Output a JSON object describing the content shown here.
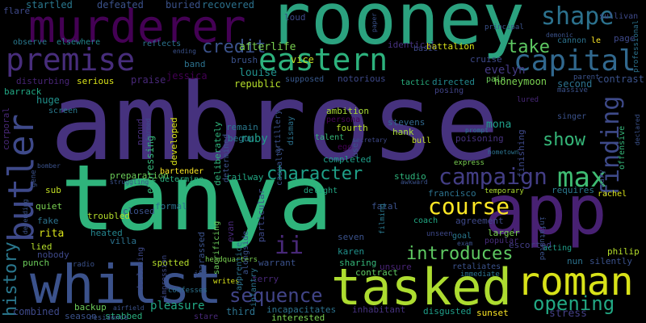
{
  "wordcloud": {
    "words": [
      {
        "text": "ambrose",
        "color": "#46327e"
      },
      {
        "text": "tanya",
        "color": "#2fb47c"
      },
      {
        "text": "rooney",
        "color": "#2ba27f"
      },
      {
        "text": "murderer",
        "color": "#440154"
      },
      {
        "text": "premise",
        "color": "#472d7b"
      },
      {
        "text": "eastern",
        "color": "#2db27d"
      },
      {
        "text": "app",
        "color": "#482173"
      },
      {
        "text": "whilst",
        "color": "#3b528b"
      },
      {
        "text": "tasked",
        "color": "#addc30"
      },
      {
        "text": "roman",
        "color": "#d8e219"
      },
      {
        "text": "butler",
        "color": "#3e4989"
      },
      {
        "text": "capital",
        "color": "#31688e"
      },
      {
        "text": "shape",
        "color": "#2c728e"
      },
      {
        "text": "campaign",
        "color": "#433e85"
      },
      {
        "text": "max",
        "color": "#3fbc73"
      },
      {
        "text": "finding",
        "color": "#3e4a89"
      },
      {
        "text": "character",
        "color": "#1fa088"
      },
      {
        "text": "course",
        "color": "#fde725"
      },
      {
        "text": "introduces",
        "color": "#5ec962"
      },
      {
        "text": "sequence",
        "color": "#414487"
      },
      {
        "text": "opening",
        "color": "#22a884"
      },
      {
        "text": "credit",
        "color": "#3b528b"
      },
      {
        "text": "show",
        "color": "#35b779"
      },
      {
        "text": "take",
        "color": "#5ec962"
      },
      {
        "text": "history",
        "color": "#2a788e"
      },
      {
        "text": "ii",
        "color": "#482878"
      },
      {
        "text": "evelyn",
        "color": "#443a83"
      },
      {
        "text": "ruby",
        "color": "#1f9e89"
      },
      {
        "text": "louise",
        "color": "#21918c"
      },
      {
        "text": "afterlife",
        "color": "#7ad151"
      },
      {
        "text": "vice",
        "color": "#c2df23"
      },
      {
        "text": "jessica",
        "color": "#440154"
      },
      {
        "text": "mona",
        "color": "#1f9e89"
      },
      {
        "text": "honeymoon",
        "color": "#7ad151"
      },
      {
        "text": "second",
        "color": "#2c728e"
      },
      {
        "text": "contrast",
        "color": "#3b528b"
      },
      {
        "text": "republic",
        "color": "#b5de2b"
      },
      {
        "text": "notorious",
        "color": "#3e4989"
      },
      {
        "text": "directed",
        "color": "#23888e"
      },
      {
        "text": "tactic",
        "color": "#2ab07f"
      },
      {
        "text": "posing",
        "color": "#414487"
      },
      {
        "text": "supposed",
        "color": "#38588c"
      },
      {
        "text": "pain",
        "color": "#6ccd5a"
      },
      {
        "text": "serious",
        "color": "#d8e219"
      },
      {
        "text": "disturbing",
        "color": "#482475"
      },
      {
        "text": "praise",
        "color": "#482878"
      },
      {
        "text": "huge",
        "color": "#21918c"
      },
      {
        "text": "barrack",
        "color": "#22a884"
      },
      {
        "text": "corporal",
        "color": "#482878"
      },
      {
        "text": "screen",
        "color": "#2a788e"
      },
      {
        "text": "expressing",
        "color": "#35b779"
      },
      {
        "text": "proud",
        "color": "#472d7b"
      },
      {
        "text": "developed",
        "color": "#d8e219"
      },
      {
        "text": "bartender",
        "color": "#fde725"
      },
      {
        "text": "remain",
        "color": "#2a788e"
      },
      {
        "text": "begun",
        "color": "#2a788e"
      },
      {
        "text": "deliberately",
        "color": "#2fb47c"
      },
      {
        "text": "determined",
        "color": "#3b528b"
      },
      {
        "text": "ambition",
        "color": "#a8db34"
      },
      {
        "text": "persona",
        "color": "#440154"
      },
      {
        "text": "fourth",
        "color": "#b5de2b"
      },
      {
        "text": "talent",
        "color": "#35b779"
      },
      {
        "text": "ego",
        "color": "#440154"
      },
      {
        "text": "stevens",
        "color": "#31688e"
      },
      {
        "text": "hank",
        "color": "#a8db34"
      },
      {
        "text": "bull",
        "color": "#c2df23"
      },
      {
        "text": "poisoning",
        "color": "#46327e"
      },
      {
        "text": "completed",
        "color": "#1f9e89"
      },
      {
        "text": "preparation",
        "color": "#6ccd5a"
      },
      {
        "text": "determine",
        "color": "#2ab07f"
      },
      {
        "text": "railway",
        "color": "#22a884"
      },
      {
        "text": "studio",
        "color": "#2fb47c"
      },
      {
        "text": "express",
        "color": "#7ad151"
      },
      {
        "text": "francisco",
        "color": "#2c728e"
      },
      {
        "text": "temporary",
        "color": "#addc30"
      },
      {
        "text": "agreement",
        "color": "#3e4989"
      },
      {
        "text": "requires",
        "color": "#2a788e"
      },
      {
        "text": "rachel",
        "color": "#d8e219"
      },
      {
        "text": "troubled",
        "color": "#b5de2b"
      },
      {
        "text": "closed",
        "color": "#3b528b"
      },
      {
        "text": "formal",
        "color": "#2c728e"
      },
      {
        "text": "heated",
        "color": "#25858e"
      },
      {
        "text": "villa",
        "color": "#2c728e"
      },
      {
        "text": "fatal",
        "color": "#3b528b"
      },
      {
        "text": "seven",
        "color": "#3b528b"
      },
      {
        "text": "larger",
        "color": "#7ad151"
      },
      {
        "text": "goal",
        "color": "#2a788e"
      },
      {
        "text": "coach",
        "color": "#22a884"
      },
      {
        "text": "popular",
        "color": "#472d7b"
      },
      {
        "text": "escorted",
        "color": "#433e85"
      },
      {
        "text": "acting",
        "color": "#1f9e89"
      },
      {
        "text": "philip",
        "color": "#b5de2b"
      },
      {
        "text": "nun",
        "color": "#2c728e"
      },
      {
        "text": "silently",
        "color": "#3b528b"
      },
      {
        "text": "karen",
        "color": "#21918c"
      },
      {
        "text": "sharing",
        "color": "#35b779"
      },
      {
        "text": "unsure",
        "color": "#482475"
      },
      {
        "text": "contract",
        "color": "#5ec962"
      },
      {
        "text": "retaliates",
        "color": "#3b528b"
      },
      {
        "text": "immediate",
        "color": "#2c728e"
      },
      {
        "text": "evan",
        "color": "#482878"
      },
      {
        "text": "warrant",
        "color": "#3b528b"
      },
      {
        "text": "terry",
        "color": "#482878"
      },
      {
        "text": "pleasure",
        "color": "#22a884"
      },
      {
        "text": "third",
        "color": "#2c728e"
      },
      {
        "text": "incapacitates",
        "color": "#2c728e"
      },
      {
        "text": "inhabitant",
        "color": "#46327e"
      },
      {
        "text": "disgusted",
        "color": "#1f9e89"
      },
      {
        "text": "sunset",
        "color": "#fde725"
      },
      {
        "text": "stress",
        "color": "#433e85"
      },
      {
        "text": "interested",
        "color": "#7ad151"
      },
      {
        "text": "stare",
        "color": "#482878"
      },
      {
        "text": "stabbed",
        "color": "#2ab07f"
      },
      {
        "text": "season",
        "color": "#3b528b"
      },
      {
        "text": "combined",
        "color": "#3e4989"
      },
      {
        "text": "backup",
        "color": "#6ccd5a"
      },
      {
        "text": "punch",
        "color": "#6ccd5a"
      },
      {
        "text": "lied",
        "color": "#b5de2b"
      },
      {
        "text": "nobody",
        "color": "#3e4989"
      },
      {
        "text": "rita",
        "color": "#d8e219"
      },
      {
        "text": "fake",
        "color": "#2c728e"
      },
      {
        "text": "quiet",
        "color": "#7ad151"
      },
      {
        "text": "sub",
        "color": "#c2df23"
      },
      {
        "text": "spotted",
        "color": "#b5de2b"
      },
      {
        "text": "radio",
        "color": "#3b528b"
      },
      {
        "text": "writes",
        "color": "#d8e219"
      },
      {
        "text": "confesses",
        "color": "#2c728e"
      },
      {
        "text": "headquarters",
        "color": "#7ad151"
      },
      {
        "text": "startled",
        "color": "#2a788e"
      },
      {
        "text": "defeated",
        "color": "#3b528b"
      },
      {
        "text": "buried",
        "color": "#3b528b"
      },
      {
        "text": "recovered",
        "color": "#2c728e"
      },
      {
        "text": "flare",
        "color": "#3e4989"
      },
      {
        "text": "observe",
        "color": "#2a788e"
      },
      {
        "text": "elsewhere",
        "color": "#25858e"
      },
      {
        "text": "reflects",
        "color": "#2c728e"
      },
      {
        "text": "band",
        "color": "#2c728e"
      },
      {
        "text": "brush",
        "color": "#3b528b"
      },
      {
        "text": "loud",
        "color": "#3e4989"
      },
      {
        "text": "identical",
        "color": "#46327e"
      },
      {
        "text": "battalion",
        "color": "#d8e219"
      },
      {
        "text": "cruise",
        "color": "#3e4989"
      },
      {
        "text": "basic",
        "color": "#3e4989"
      },
      {
        "text": "principal",
        "color": "#3b528b"
      },
      {
        "text": "sullivan",
        "color": "#3e4989"
      },
      {
        "text": "cannon",
        "color": "#2c728e"
      },
      {
        "text": "le",
        "color": "#fde725"
      },
      {
        "text": "page",
        "color": "#3e4989"
      },
      {
        "text": "professional",
        "color": "#2c728e"
      },
      {
        "text": "singer",
        "color": "#3b528b"
      },
      {
        "text": "lured",
        "color": "#482878"
      },
      {
        "text": "hometown",
        "color": "#2c728e"
      },
      {
        "text": "prompt",
        "color": "#2a788e"
      },
      {
        "text": "finishing",
        "color": "#3e4989"
      },
      {
        "text": "offensive",
        "color": "#35b779"
      },
      {
        "text": "infatuated",
        "color": "#3b528b"
      },
      {
        "text": "harassed",
        "color": "#3b528b"
      },
      {
        "text": "sacrificing",
        "color": "#6ccd5a"
      },
      {
        "text": "alongside",
        "color": "#3b528b"
      },
      {
        "text": "apprentice",
        "color": "#2c728e"
      },
      {
        "text": "infantry",
        "color": "#2c728e"
      },
      {
        "text": "particular",
        "color": "#3e4989"
      },
      {
        "text": "casualty",
        "color": "#3b528b"
      },
      {
        "text": "artillery",
        "color": "#3b528b"
      },
      {
        "text": "dismay",
        "color": "#2c728e"
      },
      {
        "text": "user",
        "color": "#3b528b"
      },
      {
        "text": "secretary",
        "color": "#3e4989"
      },
      {
        "text": "filming",
        "color": "#2a788e"
      },
      {
        "text": "declaring",
        "color": "#3e4989"
      },
      {
        "text": "residence",
        "color": "#3b528b"
      },
      {
        "text": "airfield",
        "color": "#3b528b"
      },
      {
        "text": "impression",
        "color": "#3e4989"
      },
      {
        "text": "defending",
        "color": "#3b528b"
      },
      {
        "text": "gene",
        "color": "#3b528b"
      },
      {
        "text": "bomber",
        "color": "#3b528b"
      },
      {
        "text": "struggling",
        "color": "#3b528b"
      },
      {
        "text": "informed",
        "color": "#3e4989"
      },
      {
        "text": "mary",
        "color": "#3e4989"
      },
      {
        "text": "delight",
        "color": "#22a884"
      },
      {
        "text": "awkward",
        "color": "#3b528b"
      },
      {
        "text": "exam",
        "color": "#3b528b"
      },
      {
        "text": "unseen",
        "color": "#3e4989"
      },
      {
        "text": "massive",
        "color": "#3b528b"
      },
      {
        "text": "ending",
        "color": "#3b528b"
      },
      {
        "text": "paper",
        "color": "#3b528b"
      },
      {
        "text": "demonic",
        "color": "#3b528b"
      },
      {
        "text": "parent",
        "color": "#3b528b"
      },
      {
        "text": "declared",
        "color": "#3b528b"
      },
      {
        "text": "jey",
        "color": "#3b528b"
      }
    ]
  }
}
